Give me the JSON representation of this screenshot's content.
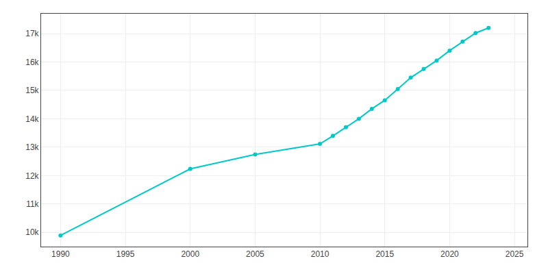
{
  "chart_data": {
    "type": "line",
    "x": [
      1990,
      2000,
      2005,
      2010,
      2011,
      2012,
      2013,
      2014,
      2015,
      2016,
      2017,
      2018,
      2019,
      2020,
      2021,
      2022,
      2023
    ],
    "values": [
      9893,
      12236,
      12745,
      13116,
      13400,
      13700,
      14000,
      14350,
      14650,
      15050,
      15450,
      15750,
      16050,
      16400,
      16720,
      17020,
      17200
    ],
    "color": "#00C8C8",
    "marker": "circle",
    "xlim": [
      1988.5,
      2026
    ],
    "xticks": [
      1990,
      1995,
      2000,
      2005,
      2010,
      2015,
      2020,
      2025
    ],
    "ylim": [
      9500,
      17700
    ],
    "yticks": [
      {
        "value": 10000,
        "label": "10k"
      },
      {
        "value": 11000,
        "label": "11k"
      },
      {
        "value": 12000,
        "label": "12k"
      },
      {
        "value": 13000,
        "label": "13k"
      },
      {
        "value": 14000,
        "label": "14k"
      },
      {
        "value": 15000,
        "label": "15k"
      },
      {
        "value": 16000,
        "label": "16k"
      },
      {
        "value": 17000,
        "label": "17k"
      }
    ],
    "grid": true
  }
}
